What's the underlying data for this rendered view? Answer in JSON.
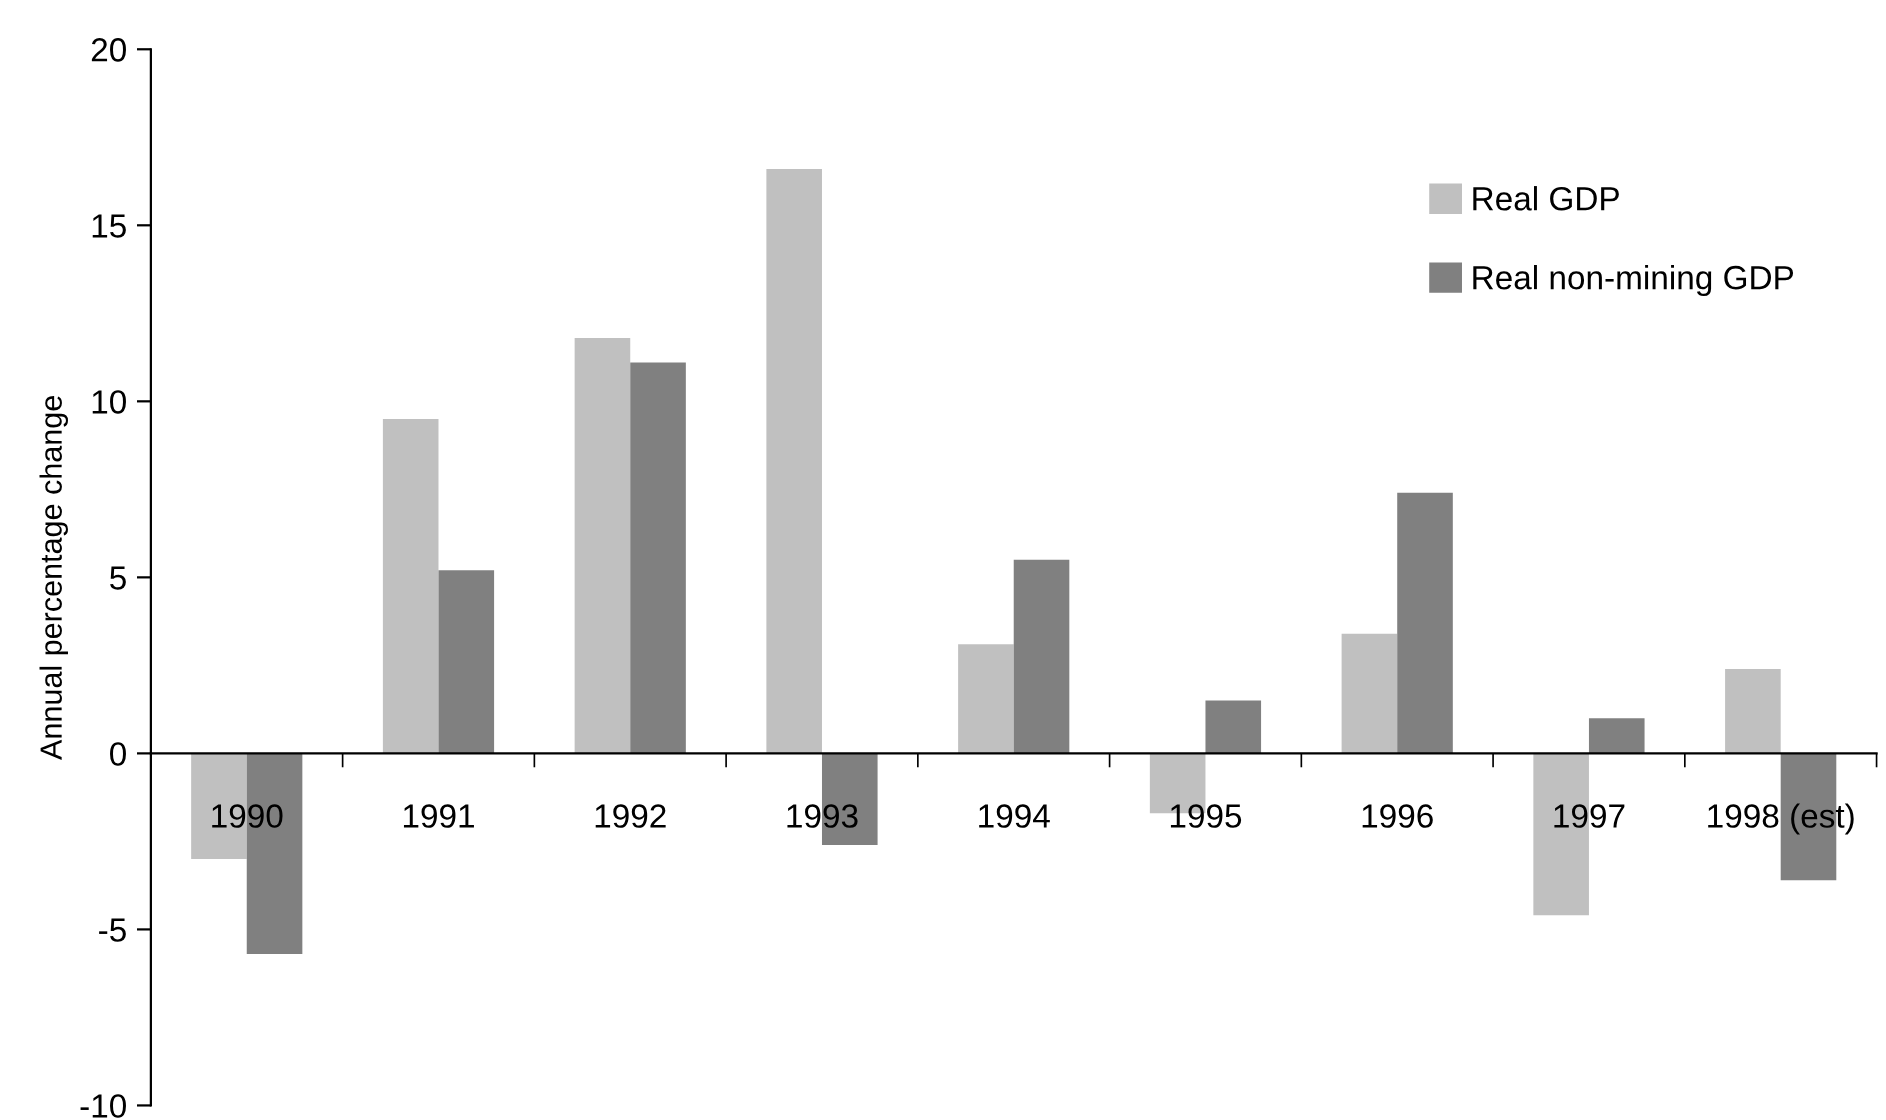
{
  "chart_data": {
    "type": "bar",
    "ylabel": "Annual percentage change",
    "categories": [
      "1990",
      "1991",
      "1992",
      "1993",
      "1994",
      "1995",
      "1996",
      "1997",
      "1998 (est)"
    ],
    "series": [
      {
        "name": "Real GDP",
        "color": "#c0c0c0",
        "values": [
          -3.0,
          9.5,
          11.8,
          16.6,
          3.1,
          -1.7,
          3.4,
          -4.6,
          2.4
        ]
      },
      {
        "name": "Real non-mining GDP",
        "color": "#808080",
        "values": [
          -5.7,
          5.2,
          11.1,
          -2.6,
          5.5,
          1.5,
          7.4,
          1.0,
          -3.6
        ]
      }
    ],
    "ylim": [
      -10,
      20
    ],
    "yticks": [
      -10,
      -5,
      0,
      5,
      10,
      15,
      20
    ],
    "grid": false,
    "legend": "top right"
  }
}
